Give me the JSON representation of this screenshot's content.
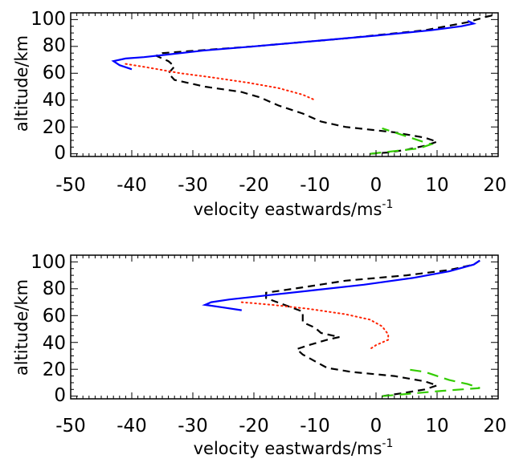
{
  "chart_data": [
    {
      "type": "line",
      "xlabel": "velocity eastwards/ms",
      "xlabel_superscript": "-1",
      "ylabel": "altitude/km",
      "xlim": [
        -50,
        20
      ],
      "ylim": [
        -2,
        105
      ],
      "xticks": [
        "-50",
        "-40",
        "-30",
        "-20",
        "-10",
        "0",
        "10",
        "20"
      ],
      "xtick_values": [
        -50,
        -40,
        -30,
        -20,
        -10,
        0,
        10,
        20
      ],
      "yticks": [
        "100",
        "80",
        "60",
        "40",
        "20",
        "0"
      ],
      "ytick_values": [
        100,
        80,
        60,
        40,
        20,
        0
      ],
      "grid": false,
      "series": [
        {
          "color": "#000000",
          "style": "dashed",
          "points": [
            [
              -1,
              0
            ],
            [
              2,
              1
            ],
            [
              5,
              3
            ],
            [
              8,
              6
            ],
            [
              10,
              9
            ],
            [
              8,
              12
            ],
            [
              3,
              16
            ],
            [
              -5,
              20
            ],
            [
              -9,
              24
            ],
            [
              -12,
              30
            ],
            [
              -16,
              36
            ],
            [
              -19,
              42
            ],
            [
              -22,
              46
            ],
            [
              -28,
              50
            ],
            [
              -33,
              55
            ],
            [
              -34,
              60
            ],
            [
              -33,
              65
            ],
            [
              -34,
              69
            ],
            [
              -36,
              73
            ],
            [
              -35,
              75
            ],
            [
              -20,
              80
            ],
            [
              -5,
              86
            ],
            [
              8,
              92
            ],
            [
              15,
              98
            ],
            [
              18,
              102
            ],
            [
              19,
              103
            ]
          ]
        },
        {
          "color": "#0000ff",
          "style": "solid",
          "points": [
            [
              -40,
              63
            ],
            [
              -42,
              66
            ],
            [
              -43,
              69
            ],
            [
              -41,
              71
            ],
            [
              -38,
              72
            ],
            [
              -34,
              74
            ],
            [
              -28,
              77
            ],
            [
              -20,
              80
            ],
            [
              -10,
              84
            ],
            [
              0,
              88
            ],
            [
              9,
              92
            ],
            [
              14,
              95
            ],
            [
              16,
              97
            ],
            [
              15,
              99
            ]
          ]
        },
        {
          "color": "#ff2200",
          "style": "dotted",
          "points": [
            [
              -41,
              67
            ],
            [
              -37,
              64
            ],
            [
              -32,
              60
            ],
            [
              -27,
              57
            ],
            [
              -21,
              53
            ],
            [
              -16,
              49
            ],
            [
              -12,
              44
            ],
            [
              -10,
              40
            ]
          ]
        },
        {
          "color": "#33cc00",
          "style": "longdash",
          "points": [
            [
              -1,
              0
            ],
            [
              3,
              2
            ],
            [
              7,
              4
            ],
            [
              9,
              7
            ],
            [
              7,
              10
            ],
            [
              5,
              13
            ],
            [
              3,
              16
            ],
            [
              1,
              19
            ]
          ]
        }
      ]
    },
    {
      "type": "line",
      "xlabel": "velocity eastwards/ms",
      "xlabel_superscript": "-1",
      "ylabel": "altitude/km",
      "xlim": [
        -50,
        20
      ],
      "ylim": [
        -2,
        105
      ],
      "xticks": [
        "-50",
        "-40",
        "-30",
        "-20",
        "-10",
        "0",
        "10",
        "20"
      ],
      "xtick_values": [
        -50,
        -40,
        -30,
        -20,
        -10,
        0,
        10,
        20
      ],
      "yticks": [
        "100",
        "80",
        "60",
        "40",
        "20",
        "0"
      ],
      "ytick_values": [
        100,
        80,
        60,
        40,
        20,
        0
      ],
      "grid": false,
      "series": [
        {
          "color": "#000000",
          "style": "dashed",
          "points": [
            [
              1,
              0
            ],
            [
              4,
              2
            ],
            [
              8,
              5
            ],
            [
              10,
              8
            ],
            [
              8,
              11
            ],
            [
              3,
              15
            ],
            [
              -4,
              18
            ],
            [
              -8,
              21
            ],
            [
              -10,
              26
            ],
            [
              -12,
              31
            ],
            [
              -13,
              35
            ],
            [
              -11,
              38
            ],
            [
              -8,
              42
            ],
            [
              -6,
              44
            ],
            [
              -9,
              47
            ],
            [
              -10,
              51
            ],
            [
              -12,
              55
            ],
            [
              -12,
              59
            ],
            [
              -12,
              63
            ],
            [
              -15,
              68
            ],
            [
              -18,
              73
            ],
            [
              -18,
              77
            ],
            [
              -12,
              81
            ],
            [
              -5,
              86
            ],
            [
              5,
              90
            ],
            [
              12,
              94
            ],
            [
              16,
              98
            ],
            [
              17,
              101
            ]
          ]
        },
        {
          "color": "#0000ff",
          "style": "solid",
          "points": [
            [
              -22,
              64
            ],
            [
              -25,
              66
            ],
            [
              -28,
              68
            ],
            [
              -27,
              70
            ],
            [
              -24,
              72
            ],
            [
              -18,
              75
            ],
            [
              -10,
              79
            ],
            [
              -2,
              83
            ],
            [
              6,
              88
            ],
            [
              12,
              93
            ],
            [
              16,
              98
            ],
            [
              17,
              101
            ]
          ]
        },
        {
          "color": "#ff2200",
          "style": "dotted",
          "points": [
            [
              -22,
              70
            ],
            [
              -17,
              68
            ],
            [
              -11,
              65
            ],
            [
              -5,
              61
            ],
            [
              -1,
              57
            ],
            [
              1,
              52
            ],
            [
              2,
              46
            ],
            [
              2,
              42
            ],
            [
              0,
              38
            ],
            [
              -1,
              35
            ]
          ]
        },
        {
          "color": "#33cc00",
          "style": "longdash",
          "points": [
            [
              1,
              0
            ],
            [
              6,
              2
            ],
            [
              11,
              4
            ],
            [
              17,
              6
            ],
            [
              15,
              9
            ],
            [
              12,
              12
            ],
            [
              10,
              15
            ],
            [
              8,
              18
            ],
            [
              5,
              20
            ]
          ]
        }
      ]
    }
  ]
}
